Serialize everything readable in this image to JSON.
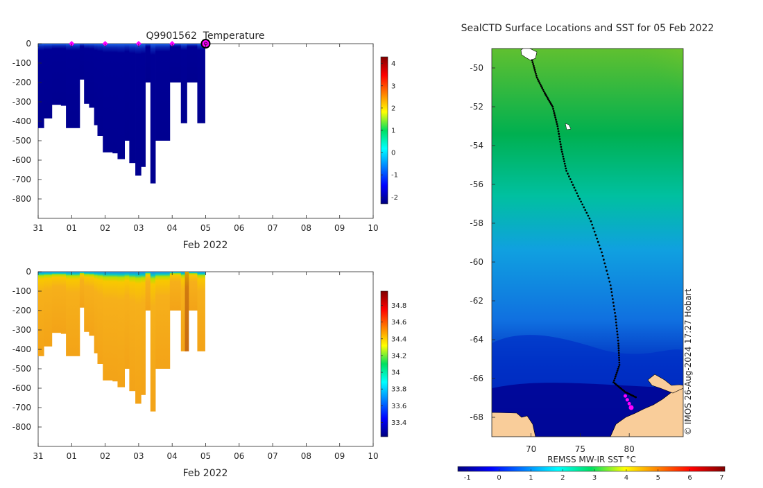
{
  "colors": {
    "deep_blue": "#00007f",
    "ocean_blue": "#000096",
    "salinity_orange": "#f0a014",
    "land": "#f9cd9a",
    "platform_marker": "#ff00ff",
    "track": "#000000"
  },
  "chart_data": [
    {
      "type": "heatmap",
      "name": "temperature-profile",
      "title": "Q9901562  Temperature",
      "xlabel": "Feb 2022",
      "ylabel": "",
      "x_tick_labels": [
        "31",
        "01",
        "02",
        "03",
        "04",
        "05",
        "06",
        "07",
        "08",
        "09",
        "10"
      ],
      "xlim_days": [
        0,
        10
      ],
      "y_ticks": [
        0,
        -100,
        -200,
        -300,
        -400,
        -500,
        -600,
        -700,
        -800
      ],
      "ylim": [
        -900,
        0
      ],
      "colorbar": {
        "min": -2.3,
        "max": 4.3,
        "ticks": [
          4,
          3,
          2,
          1,
          0,
          -1,
          -2
        ],
        "colormap": "jet"
      },
      "profiles": [
        {
          "day": 0.0,
          "depth": 435
        },
        {
          "day": 0.17,
          "depth": 385
        },
        {
          "day": 0.41,
          "depth": 315
        },
        {
          "day": 0.68,
          "depth": 320
        },
        {
          "day": 0.83,
          "depth": 435
        },
        {
          "day": 1.24,
          "depth": 185
        },
        {
          "day": 1.37,
          "depth": 310
        },
        {
          "day": 1.52,
          "depth": 330
        },
        {
          "day": 1.67,
          "depth": 420
        },
        {
          "day": 1.77,
          "depth": 475
        },
        {
          "day": 1.93,
          "depth": 560
        },
        {
          "day": 2.22,
          "depth": 565
        },
        {
          "day": 2.37,
          "depth": 595
        },
        {
          "day": 2.58,
          "depth": 500
        },
        {
          "day": 2.72,
          "depth": 615
        },
        {
          "day": 2.9,
          "depth": 680
        },
        {
          "day": 3.07,
          "depth": 635
        },
        {
          "day": 3.2,
          "depth": 200
        },
        {
          "day": 3.35,
          "depth": 720
        },
        {
          "day": 3.5,
          "depth": 500
        },
        {
          "day": 3.93,
          "depth": 200
        },
        {
          "day": 4.26,
          "depth": 410
        },
        {
          "day": 4.44,
          "depth": 200
        },
        {
          "day": 4.75,
          "depth": 410
        },
        {
          "day": 4.92,
          "depth": 410
        }
      ],
      "surface_markers_days": [
        1.0,
        2.0,
        3.0,
        4.0
      ],
      "current_day": 5.0
    },
    {
      "type": "heatmap",
      "name": "salinity-profile",
      "title": "",
      "xlabel": "Feb 2022",
      "ylabel": "",
      "x_tick_labels": [
        "31",
        "01",
        "02",
        "03",
        "04",
        "05",
        "06",
        "07",
        "08",
        "09",
        "10"
      ],
      "xlim_days": [
        0,
        10
      ],
      "y_ticks": [
        0,
        -100,
        -200,
        -300,
        -400,
        -500,
        -600,
        -700,
        -800
      ],
      "ylim": [
        -900,
        0
      ],
      "colorbar": {
        "min": 33.23,
        "max": 34.97,
        "ticks": [
          34.8,
          34.6,
          34.4,
          34.2,
          34,
          33.8,
          33.6,
          33.4
        ],
        "colormap": "jet"
      },
      "profiles": [
        {
          "day": 0.0,
          "depth": 435
        },
        {
          "day": 0.17,
          "depth": 385
        },
        {
          "day": 0.41,
          "depth": 315
        },
        {
          "day": 0.68,
          "depth": 320
        },
        {
          "day": 0.83,
          "depth": 435
        },
        {
          "day": 1.24,
          "depth": 185
        },
        {
          "day": 1.37,
          "depth": 310
        },
        {
          "day": 1.52,
          "depth": 330
        },
        {
          "day": 1.67,
          "depth": 420
        },
        {
          "day": 1.77,
          "depth": 475
        },
        {
          "day": 1.93,
          "depth": 560
        },
        {
          "day": 2.22,
          "depth": 565
        },
        {
          "day": 2.37,
          "depth": 595
        },
        {
          "day": 2.58,
          "depth": 500
        },
        {
          "day": 2.72,
          "depth": 615
        },
        {
          "day": 2.9,
          "depth": 680
        },
        {
          "day": 3.07,
          "depth": 635
        },
        {
          "day": 3.2,
          "depth": 200
        },
        {
          "day": 3.35,
          "depth": 720
        },
        {
          "day": 3.5,
          "depth": 500
        },
        {
          "day": 3.93,
          "depth": 200
        },
        {
          "day": 4.26,
          "depth": 410
        },
        {
          "day": 4.44,
          "depth": 200
        },
        {
          "day": 4.75,
          "depth": 410
        },
        {
          "day": 4.92,
          "depth": 410
        }
      ],
      "anomaly_profile_days": [
        4.38,
        4.5
      ]
    },
    {
      "type": "scatter",
      "name": "sst-map",
      "title": "SealCTD Surface Locations and SST for 05 Feb 2022",
      "xlabel": "",
      "x_tick_labels": [
        "70",
        "75",
        "80"
      ],
      "x_ticks": [
        70,
        75,
        80
      ],
      "xlim": [
        66,
        85.5
      ],
      "y_ticks": [
        -50,
        -52,
        -54,
        -56,
        -58,
        -60,
        -62,
        -64,
        -66,
        -68
      ],
      "ylim": [
        -69.0,
        -49.0
      ],
      "colorbar": {
        "label": "REMSS MW-IR SST °C",
        "min": -1.3,
        "max": 7.1,
        "ticks": [
          -1,
          0,
          1,
          2,
          3,
          4,
          5,
          6,
          7
        ]
      },
      "credit": "© IMOS 26-Aug-2024 17:27 Hobart",
      "track_waypoints": [
        {
          "lon": 70.1,
          "lat": -49.6
        },
        {
          "lon": 70.6,
          "lat": -50.5
        },
        {
          "lon": 71.4,
          "lat": -51.3
        },
        {
          "lon": 72.2,
          "lat": -52.0
        },
        {
          "lon": 72.7,
          "lat": -53.0
        },
        {
          "lon": 73.1,
          "lat": -54.2
        },
        {
          "lon": 73.6,
          "lat": -55.3
        },
        {
          "lon": 74.8,
          "lat": -56.6
        },
        {
          "lon": 76.1,
          "lat": -57.9
        },
        {
          "lon": 77.2,
          "lat": -59.5
        },
        {
          "lon": 78.1,
          "lat": -61.2
        },
        {
          "lon": 78.6,
          "lat": -62.8
        },
        {
          "lon": 78.9,
          "lat": -64.2
        },
        {
          "lon": 79.0,
          "lat": -65.3
        },
        {
          "lon": 78.4,
          "lat": -66.2
        },
        {
          "lon": 79.6,
          "lat": -66.7
        },
        {
          "lon": 80.8,
          "lat": -67.0
        }
      ],
      "recent_positions": [
        {
          "lon": 79.6,
          "lat": -66.9
        },
        {
          "lon": 79.8,
          "lat": -67.1
        },
        {
          "lon": 80.0,
          "lat": -67.3
        },
        {
          "lon": 80.2,
          "lat": -67.5
        }
      ]
    }
  ]
}
